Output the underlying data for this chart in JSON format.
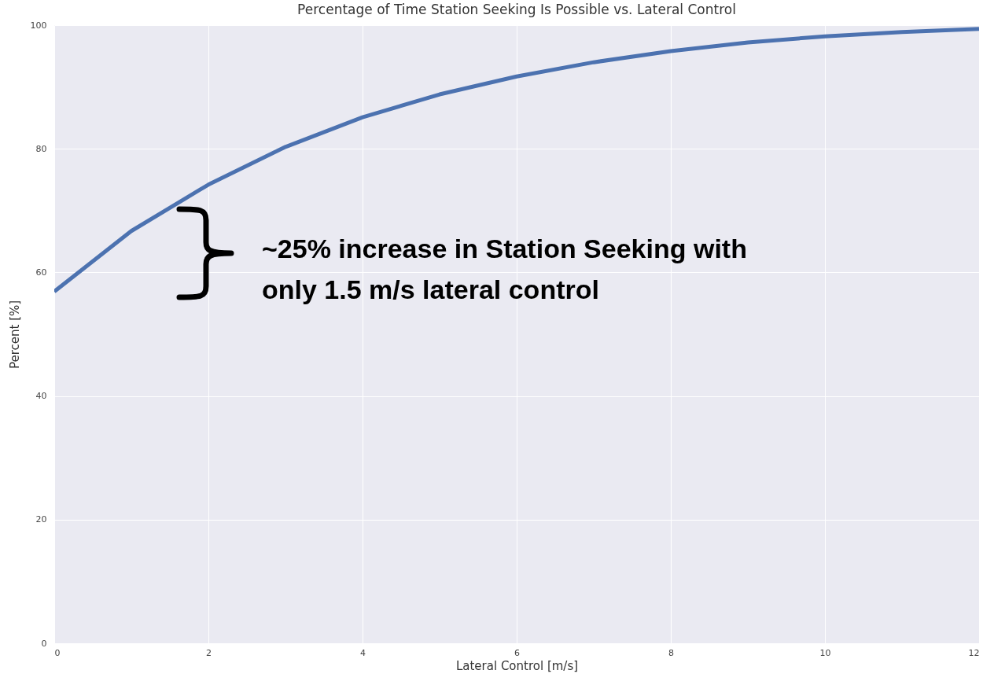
{
  "chart_data": {
    "type": "line",
    "title": "Percentage of Time Station Seeking Is Possible vs. Lateral Control",
    "xlabel": "Lateral Control [m/s]",
    "ylabel": "Percent [%]",
    "x": [
      0,
      1,
      2,
      3,
      4,
      5,
      6,
      7,
      8,
      9,
      10,
      11,
      12
    ],
    "series": [
      {
        "color": "#4c72b0",
        "values": [
          56.9,
          66.7,
          74.2,
          80.3,
          85.1,
          88.8,
          91.7,
          94.0,
          95.8,
          97.2,
          98.2,
          98.9,
          99.4
        ]
      }
    ],
    "xlim": [
      0,
      12
    ],
    "xticks": [
      0,
      2,
      4,
      6,
      8,
      10,
      12
    ],
    "ylim": [
      0,
      100
    ],
    "yticks": [
      0,
      20,
      40,
      60,
      80,
      100
    ],
    "grid": true,
    "annotations": [
      "~25% increase in Station Seeking with\nonly 1.5 m/s lateral control"
    ]
  }
}
